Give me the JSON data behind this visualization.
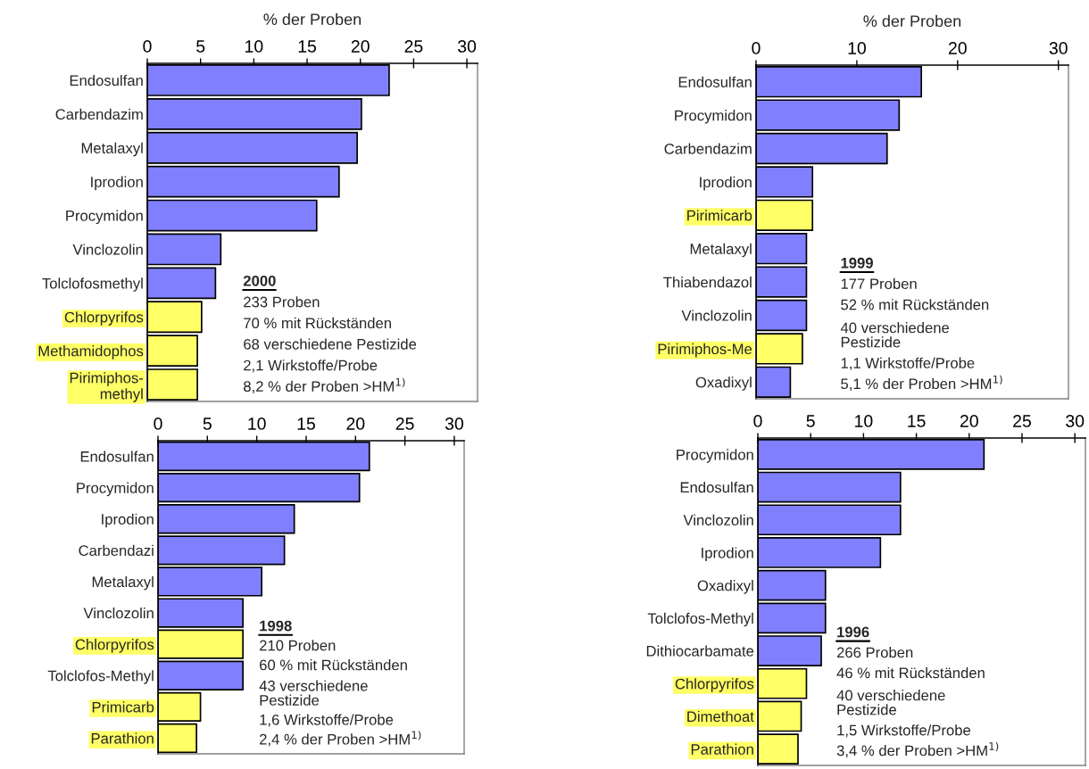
{
  "chart_data": [
    {
      "type": "bar",
      "orientation": "horizontal",
      "xlabel": "% der Proben",
      "categories": [
        "Endosulfan",
        "Carbendazim",
        "Metalaxyl",
        "Iprodion",
        "Procymidon",
        "Vinclozolin",
        "Tolclofosmethyl",
        "Chlorpyrifos",
        "Methamidophos",
        "Pirimiphos-\nmethyl"
      ],
      "values": [
        22.7,
        20.1,
        19.7,
        18.0,
        15.9,
        6.9,
        6.4,
        5.1,
        4.7,
        4.7
      ],
      "colors": [
        "#8080ff",
        "#8080ff",
        "#8080ff",
        "#8080ff",
        "#8080ff",
        "#8080ff",
        "#8080ff",
        "#ffff66",
        "#ffff66",
        "#ffff66"
      ],
      "xlim": [
        0,
        31
      ],
      "xticks": [
        0,
        5,
        10,
        15,
        20,
        25,
        30
      ],
      "grid": false,
      "legend": false,
      "annotations": [
        "2000",
        "233 Proben",
        "70 % mit Rückständen",
        "68 verschiedene Pestizide",
        "2,1 Wirkstoffe/Probe",
        "8,2 % der Proben >HM$^{1)}$"
      ]
    },
    {
      "type": "bar",
      "orientation": "horizontal",
      "xlabel": "% der Proben",
      "categories": [
        "Endosulfan",
        "Procymidon",
        "Carbendazim",
        "Iprodion",
        "Pirimicarb",
        "Metalaxyl",
        "Thiabendazol",
        "Vinclozolin",
        "Pirimiphos-Me",
        "Oxadixyl"
      ],
      "values": [
        16.4,
        14.2,
        13.0,
        5.6,
        5.6,
        5.0,
        5.0,
        5.0,
        4.6,
        3.4
      ],
      "colors": [
        "#8080ff",
        "#8080ff",
        "#8080ff",
        "#8080ff",
        "#ffff66",
        "#8080ff",
        "#8080ff",
        "#8080ff",
        "#ffff66",
        "#8080ff"
      ],
      "xlim": [
        0,
        31
      ],
      "xticks": [
        0,
        10,
        20,
        30
      ],
      "grid": false,
      "legend": false,
      "annotations": [
        "1999",
        "177 Proben",
        "52 % mit Rückständen",
        "40 verschiedene\nPestizide",
        "1,1 Wirkstoffe/Probe",
        "5,1 % der Proben >HM$^{1)}$"
      ]
    },
    {
      "type": "bar",
      "orientation": "horizontal",
      "categories": [
        "Endosulfan",
        "Procymidon",
        "Iprodion",
        "Carbendazi",
        "Metalaxyl",
        "Vinclozolin",
        "Chlorpyrifos",
        "Tolclofos-Methyl",
        "Primicarb",
        "Parathion"
      ],
      "values": [
        21.4,
        20.4,
        13.8,
        12.8,
        10.5,
        8.6,
        8.6,
        8.6,
        4.3,
        3.9
      ],
      "colors": [
        "#8080ff",
        "#8080ff",
        "#8080ff",
        "#8080ff",
        "#8080ff",
        "#8080ff",
        "#ffff66",
        "#8080ff",
        "#ffff66",
        "#ffff66"
      ],
      "xlim": [
        0,
        31
      ],
      "xticks": [
        0,
        5,
        10,
        15,
        20,
        25,
        30
      ],
      "grid": false,
      "legend": false,
      "annotations": [
        "1998",
        "210 Proben",
        "60 % mit Rückständen",
        "43 verschiedene\nPestizide",
        "1,6 Wirkstoffe/Probe",
        "2,4 % der Proben >HM$^{1)}$"
      ]
    },
    {
      "type": "bar",
      "orientation": "horizontal",
      "categories": [
        "Procymidon",
        "Endosulfan",
        "Vinclozolin",
        "Iprodion",
        "Oxadixyl",
        "Tolclofos-Methyl",
        "Dithiocarbamate",
        "Chlorpyrifos",
        "Dimethoat",
        "Parathion"
      ],
      "values": [
        21.4,
        13.5,
        13.5,
        11.6,
        6.4,
        6.4,
        6.0,
        4.6,
        4.1,
        3.8
      ],
      "colors": [
        "#8080ff",
        "#8080ff",
        "#8080ff",
        "#8080ff",
        "#8080ff",
        "#8080ff",
        "#8080ff",
        "#ffff66",
        "#ffff66",
        "#ffff66"
      ],
      "xlim": [
        0,
        31
      ],
      "xticks": [
        0,
        5,
        10,
        15,
        20,
        25,
        30
      ],
      "grid": false,
      "legend": false,
      "annotations": [
        "1996",
        "266 Proben",
        "46 % mit Rückständen",
        "40 verschiedene\nPestizide",
        "1,5 Wirkstoffe/Probe",
        "3,4 % der Proben >HM$^{1)}$"
      ]
    }
  ]
}
